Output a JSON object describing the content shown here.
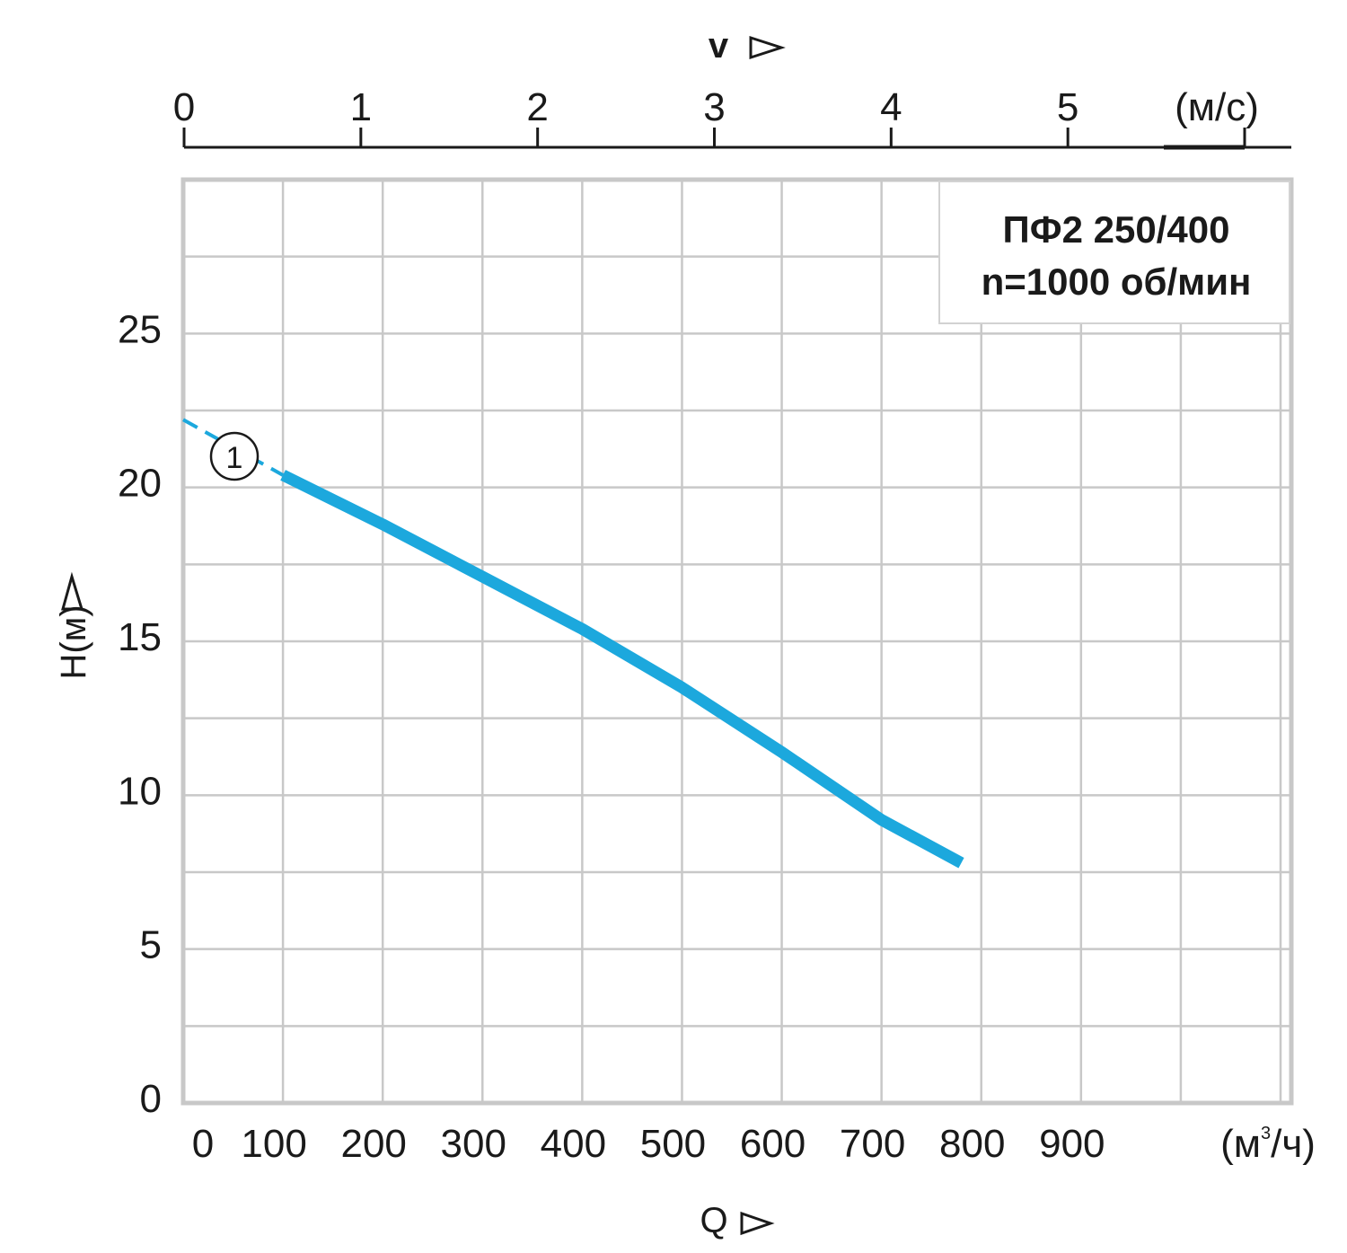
{
  "chart_data": {
    "type": "line",
    "x_axis": {
      "title": "Q",
      "unit_label": "(м³/ч)",
      "unit_base": "(м",
      "unit_sup": "3",
      "unit_tail": "/ч)",
      "ticks": [
        "0",
        "100",
        "200",
        "300",
        "400",
        "500",
        "600",
        "700",
        "800",
        "900"
      ],
      "range": [
        0,
        1100
      ]
    },
    "y_axis": {
      "title": "H(м)",
      "ticks": [
        "0",
        "5",
        "10",
        "15",
        "20",
        "25"
      ],
      "range": [
        0,
        30
      ]
    },
    "top_axis": {
      "title": "v",
      "unit_label": "(м/с)",
      "ticks": [
        "0",
        "1",
        "2",
        "3",
        "4",
        "5"
      ],
      "range": [
        0,
        6.3
      ]
    },
    "legend": {
      "line1": "ПФ2 250/400",
      "line2": "n=1000 об/мин"
    },
    "series": [
      {
        "name": "1",
        "label": "1",
        "color": "#1ca8dd",
        "x": [
          0,
          50,
          100,
          200,
          300,
          400,
          500,
          600,
          700,
          780
        ],
        "y": [
          22.2,
          21.3,
          20.4,
          18.8,
          17.1,
          15.4,
          13.5,
          11.4,
          9.2,
          7.8
        ]
      }
    ],
    "grid": true
  }
}
